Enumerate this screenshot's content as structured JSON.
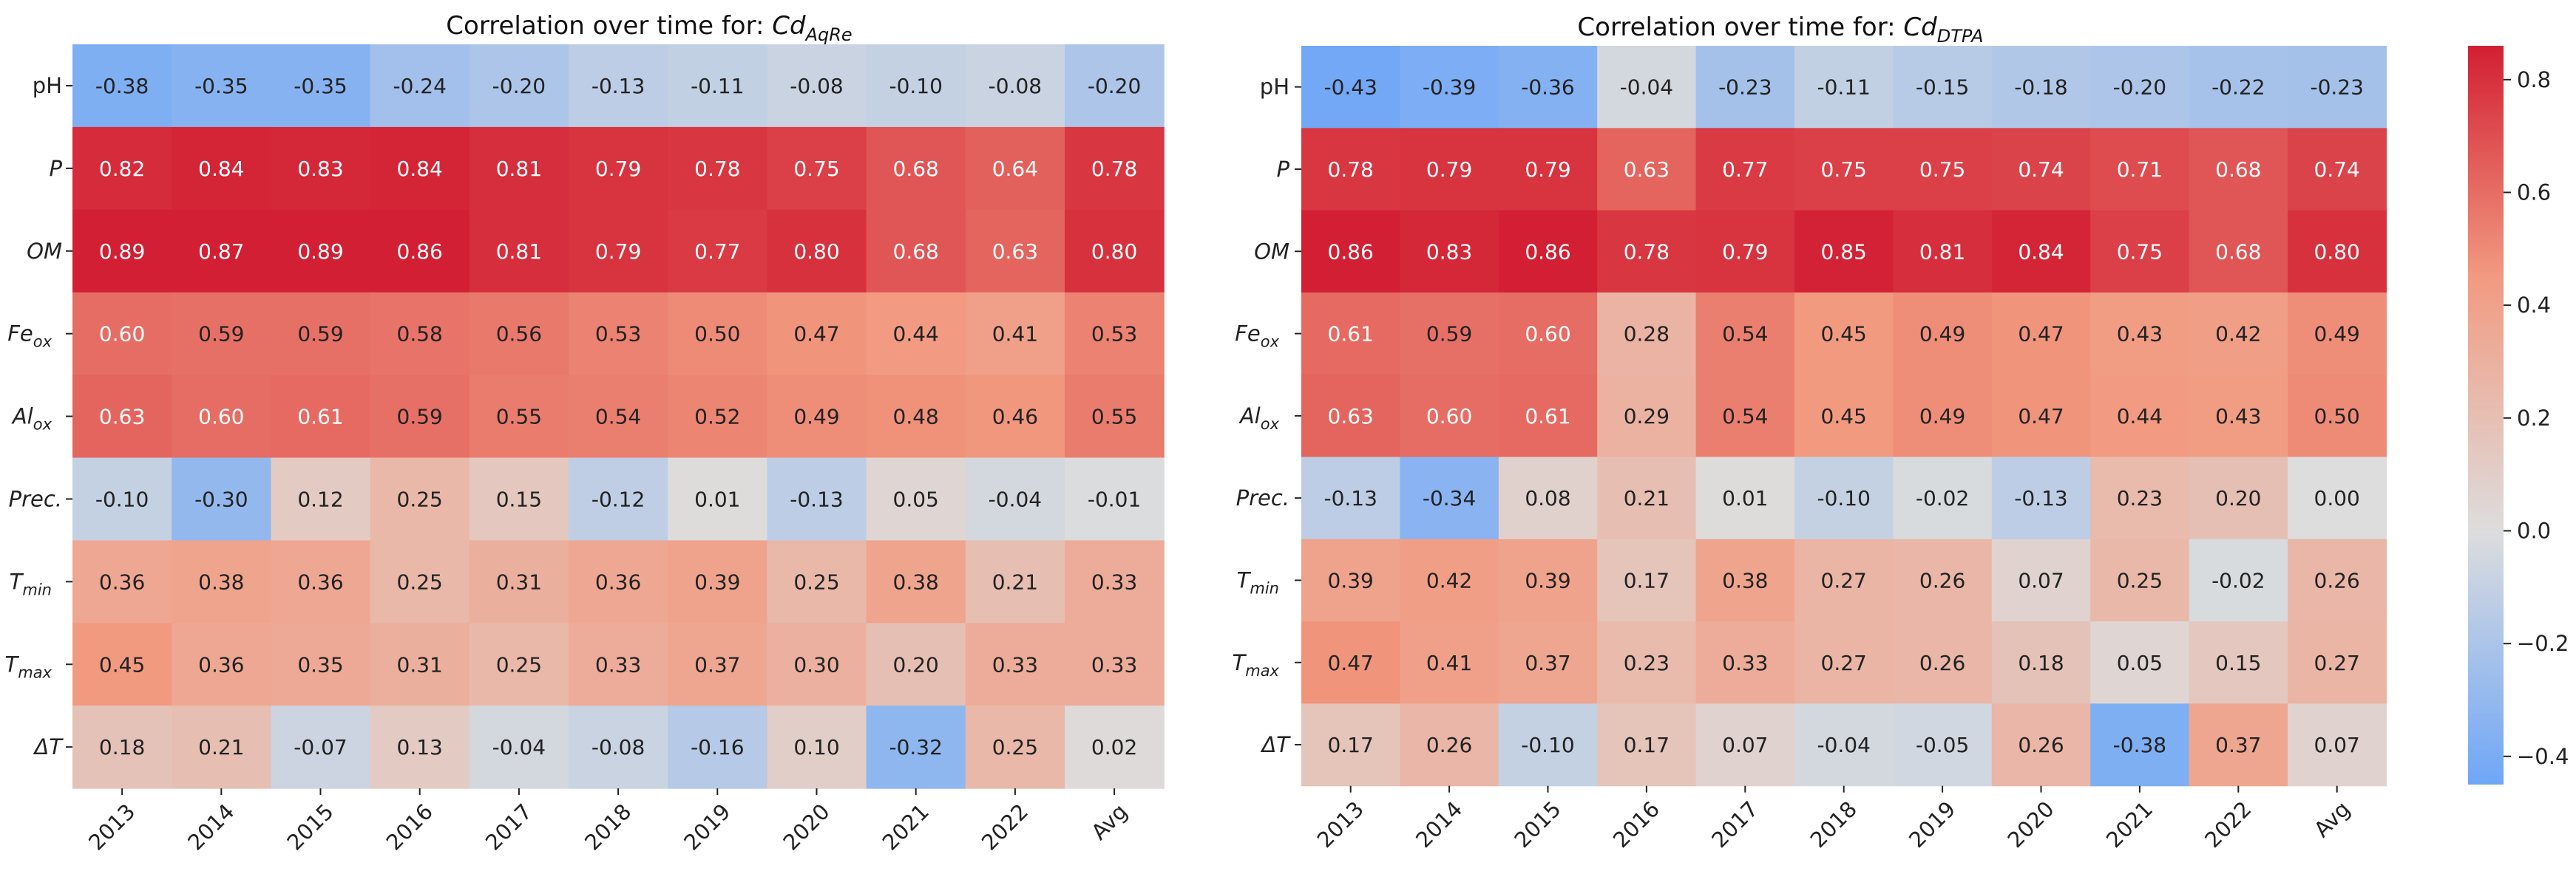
{
  "colorscale": {
    "min": -0.45,
    "max": 0.86,
    "stops": [
      {
        "v": -0.45,
        "color": "#6ea6f7"
      },
      {
        "v": 0.0,
        "color": "#dddddd"
      },
      {
        "v": 0.45,
        "color": "#f29a80"
      },
      {
        "v": 0.86,
        "color": "#d21f33"
      }
    ],
    "text_dark": "#222222",
    "text_light": "#ffffff"
  },
  "chart_data": [
    {
      "type": "heatmap",
      "title_prefix": "Correlation over time for: ",
      "title_base": "Cd",
      "title_sub": "AqRe",
      "categories": [
        "2013",
        "2014",
        "2015",
        "2016",
        "2017",
        "2018",
        "2019",
        "2020",
        "2021",
        "2022",
        "Avg"
      ],
      "rows": [
        {
          "base": "pH",
          "sub": "",
          "italic": false
        },
        {
          "base": "P",
          "sub": "",
          "italic": true
        },
        {
          "base": "OM",
          "sub": "",
          "italic": true
        },
        {
          "base": "Fe",
          "sub": "ox",
          "italic": true
        },
        {
          "base": "Al",
          "sub": "ox",
          "italic": true
        },
        {
          "base": "Prec.",
          "sub": "",
          "italic": true
        },
        {
          "base": "T",
          "sub": "min",
          "italic": true
        },
        {
          "base": "T",
          "sub": "max",
          "italic": true
        },
        {
          "base": "ΔT",
          "sub": "",
          "italic": true
        }
      ],
      "values": [
        [
          -0.38,
          -0.35,
          -0.35,
          -0.24,
          -0.2,
          -0.13,
          -0.11,
          -0.08,
          -0.1,
          -0.08,
          -0.2
        ],
        [
          0.82,
          0.84,
          0.83,
          0.84,
          0.81,
          0.79,
          0.78,
          0.75,
          0.68,
          0.64,
          0.78
        ],
        [
          0.89,
          0.87,
          0.89,
          0.86,
          0.81,
          0.79,
          0.77,
          0.8,
          0.68,
          0.63,
          0.8
        ],
        [
          0.6,
          0.59,
          0.59,
          0.58,
          0.56,
          0.53,
          0.5,
          0.47,
          0.44,
          0.41,
          0.53
        ],
        [
          0.63,
          0.6,
          0.61,
          0.59,
          0.55,
          0.54,
          0.52,
          0.49,
          0.48,
          0.46,
          0.55
        ],
        [
          -0.1,
          -0.3,
          0.12,
          0.25,
          0.15,
          -0.12,
          0.01,
          -0.13,
          0.05,
          -0.04,
          -0.01
        ],
        [
          0.36,
          0.38,
          0.36,
          0.25,
          0.31,
          0.36,
          0.39,
          0.25,
          0.38,
          0.21,
          0.33
        ],
        [
          0.45,
          0.36,
          0.35,
          0.31,
          0.25,
          0.33,
          0.37,
          0.3,
          0.2,
          0.33,
          0.33
        ],
        [
          0.18,
          0.21,
          -0.07,
          0.13,
          -0.04,
          -0.08,
          -0.16,
          0.1,
          -0.32,
          0.25,
          0.02
        ]
      ]
    },
    {
      "type": "heatmap",
      "title_prefix": "Correlation over time for: ",
      "title_base": "Cd",
      "title_sub": "DTPA",
      "categories": [
        "2013",
        "2014",
        "2015",
        "2016",
        "2017",
        "2018",
        "2019",
        "2020",
        "2021",
        "2022",
        "Avg"
      ],
      "rows": [
        {
          "base": "pH",
          "sub": "",
          "italic": false
        },
        {
          "base": "P",
          "sub": "",
          "italic": true
        },
        {
          "base": "OM",
          "sub": "",
          "italic": true
        },
        {
          "base": "Fe",
          "sub": "ox",
          "italic": true
        },
        {
          "base": "Al",
          "sub": "ox",
          "italic": true
        },
        {
          "base": "Prec.",
          "sub": "",
          "italic": true
        },
        {
          "base": "T",
          "sub": "min",
          "italic": true
        },
        {
          "base": "T",
          "sub": "max",
          "italic": true
        },
        {
          "base": "ΔT",
          "sub": "",
          "italic": true
        }
      ],
      "values": [
        [
          -0.43,
          -0.39,
          -0.36,
          -0.04,
          -0.23,
          -0.11,
          -0.15,
          -0.18,
          -0.2,
          -0.22,
          -0.23
        ],
        [
          0.78,
          0.79,
          0.79,
          0.63,
          0.77,
          0.75,
          0.75,
          0.74,
          0.71,
          0.68,
          0.74
        ],
        [
          0.86,
          0.83,
          0.86,
          0.78,
          0.79,
          0.85,
          0.81,
          0.84,
          0.75,
          0.68,
          0.8
        ],
        [
          0.61,
          0.59,
          0.6,
          0.28,
          0.54,
          0.45,
          0.49,
          0.47,
          0.43,
          0.42,
          0.49
        ],
        [
          0.63,
          0.6,
          0.61,
          0.29,
          0.54,
          0.45,
          0.49,
          0.47,
          0.44,
          0.43,
          0.5
        ],
        [
          -0.13,
          -0.34,
          0.08,
          0.21,
          0.01,
          -0.1,
          -0.02,
          -0.13,
          0.23,
          0.2,
          0.0
        ],
        [
          0.39,
          0.42,
          0.39,
          0.17,
          0.38,
          0.27,
          0.26,
          0.07,
          0.25,
          -0.02,
          0.26
        ],
        [
          0.47,
          0.41,
          0.37,
          0.23,
          0.33,
          0.27,
          0.26,
          0.18,
          0.05,
          0.15,
          0.27
        ],
        [
          0.17,
          0.26,
          -0.1,
          0.17,
          0.07,
          -0.04,
          -0.05,
          0.26,
          -0.38,
          0.37,
          0.07
        ]
      ]
    }
  ],
  "colorbar": {
    "ticks": [
      {
        "value": 0.8,
        "label": "0.8"
      },
      {
        "value": 0.6,
        "label": "0.6"
      },
      {
        "value": 0.4,
        "label": "0.4"
      },
      {
        "value": 0.2,
        "label": "0.2"
      },
      {
        "value": 0.0,
        "label": "0.0"
      },
      {
        "value": -0.2,
        "label": "−0.2"
      },
      {
        "value": -0.4,
        "label": "−0.4"
      }
    ]
  }
}
